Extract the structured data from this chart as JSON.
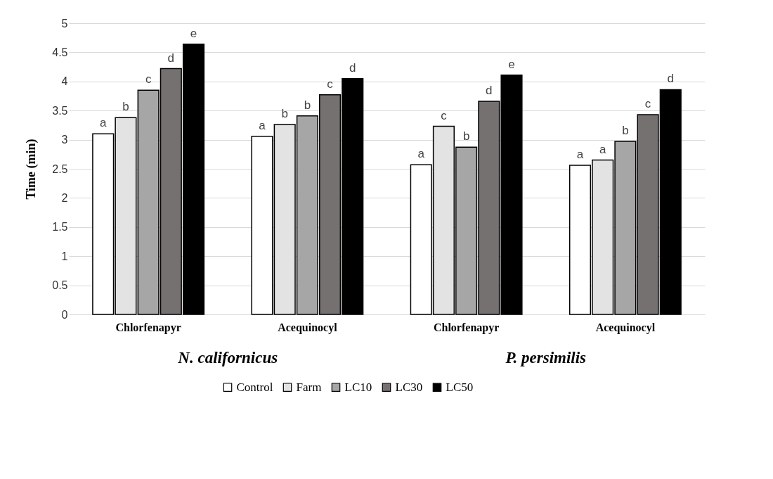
{
  "chart_data": {
    "type": "bar",
    "ylabel": "Time (min)",
    "categories": [
      "Chlorfenapyr",
      "Acequinocyl",
      "Chlorfenapyr",
      "Acequinocyl"
    ],
    "series": [
      {
        "name": "Control",
        "color": "#ffffff",
        "values": [
          3.1,
          3.06,
          2.57,
          2.56
        ],
        "value_labels": [
          "a",
          "a",
          "a",
          "a"
        ]
      },
      {
        "name": "Farm",
        "color": "#e3e3e3",
        "values": [
          3.38,
          3.26,
          3.23,
          2.65
        ],
        "value_labels": [
          "b",
          "b",
          "c",
          "a"
        ]
      },
      {
        "name": "LC10",
        "color": "#a6a6a6",
        "values": [
          3.85,
          3.41,
          2.87,
          2.97
        ],
        "value_labels": [
          "c",
          "b",
          "b",
          "b"
        ]
      },
      {
        "name": "LC30",
        "color": "#767171",
        "values": [
          4.22,
          3.77,
          3.66,
          3.43
        ],
        "value_labels": [
          "d",
          "c",
          "d",
          "c"
        ]
      },
      {
        "name": "LC50",
        "color": "#000000",
        "values": [
          4.64,
          4.05,
          4.11,
          3.86
        ],
        "value_labels": [
          "e",
          "d",
          "e",
          "d"
        ]
      }
    ],
    "ylim": [
      0,
      5
    ],
    "yticks": [
      0,
      0.5,
      1,
      1.5,
      2,
      2.5,
      3,
      3.5,
      4,
      4.5,
      5
    ],
    "grid": "y",
    "legend": "bottom",
    "annotations": [
      "N. californicus",
      "P. persimilis"
    ]
  }
}
